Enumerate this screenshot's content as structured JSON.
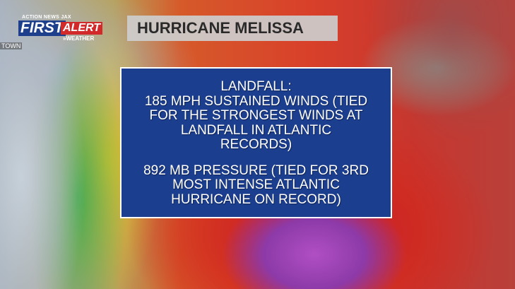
{
  "logo": {
    "station": "ACTION NEWS JAX",
    "first": "FIRST",
    "alert": "ALERT",
    "weather": "»WEATHER"
  },
  "header": {
    "title": "HURRICANE MELISSA"
  },
  "map_label": "TOWN",
  "box": {
    "heading": "LANDFALL:",
    "paragraphs": [
      [
        "185 MPH SUSTAINED WINDS (TIED",
        "FOR THE STRONGEST WINDS AT",
        "LANDFALL IN ATLANTIC",
        "RECORDS)"
      ],
      [
        "892 MB PRESSURE (TIED FOR 3RD",
        "MOST INTENSE ATLANTIC",
        "HURRICANE ON RECORD)"
      ]
    ]
  }
}
